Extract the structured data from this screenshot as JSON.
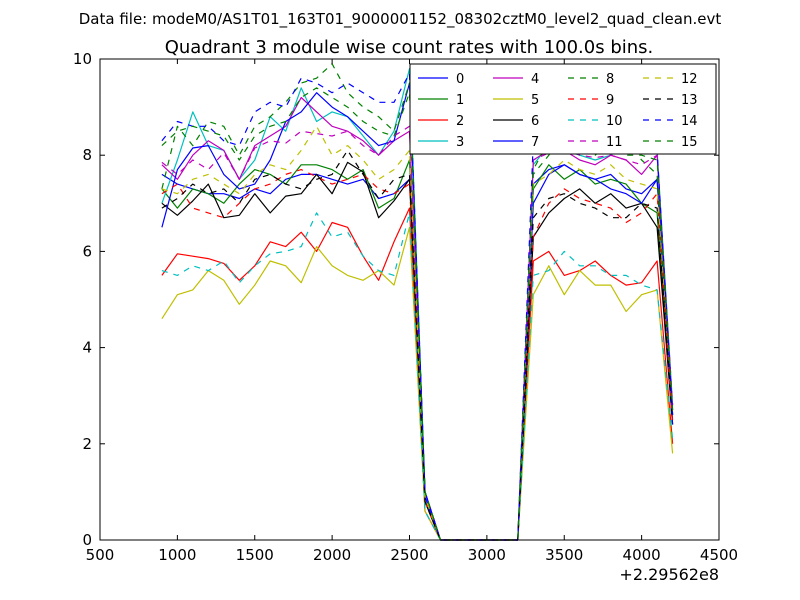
{
  "figure": {
    "suptitle": "Data file: modeM0/AS1T01_163T01_9000001152_08302cztM0_level2_quad_clean.evt",
    "offset_label": "+2.29562e8"
  },
  "chart_data": {
    "type": "line",
    "title": "Quadrant 3 module wise count rates with 100.0s bins.",
    "xlabel": "",
    "ylabel": "",
    "xlim": [
      500,
      4500
    ],
    "ylim": [
      0,
      10
    ],
    "xticks": [
      500,
      1000,
      1500,
      2000,
      2500,
      3000,
      3500,
      4000,
      4500
    ],
    "yticks": [
      0,
      2,
      4,
      6,
      8,
      10
    ],
    "x_offset": "+2.29562e8",
    "grid": false,
    "legend_position": "top-right",
    "legend_columns": 4,
    "x": [
      900,
      1000,
      1100,
      1200,
      1300,
      1400,
      1500,
      1600,
      1700,
      1800,
      1900,
      2000,
      2100,
      2200,
      2300,
      2400,
      2500,
      2600,
      2700,
      2800,
      2900,
      3000,
      3100,
      3200,
      3300,
      3400,
      3500,
      3600,
      3700,
      3800,
      3900,
      4000,
      4100,
      4200
    ],
    "series": [
      {
        "name": "0",
        "color": "#0000ff",
        "dash": "solid",
        "values": [
          7.6,
          7.4,
          7.3,
          7.2,
          7.2,
          7.1,
          7.3,
          7.2,
          7.5,
          7.6,
          7.6,
          7.5,
          7.4,
          7.5,
          7.1,
          7.2,
          7.5,
          0.9,
          0,
          0,
          0,
          0,
          0,
          0,
          7.4,
          7.7,
          7.8,
          7.6,
          7.5,
          7.6,
          7.3,
          7.2,
          7.5,
          2.6
        ]
      },
      {
        "name": "1",
        "color": "#008000",
        "dash": "solid",
        "values": [
          7.3,
          6.9,
          7.3,
          7.2,
          7.0,
          7.4,
          7.7,
          7.6,
          7.4,
          7.8,
          7.8,
          7.7,
          7.5,
          7.7,
          6.9,
          7.1,
          7.9,
          0.8,
          0,
          0,
          0,
          0,
          0,
          0,
          7.3,
          7.8,
          7.5,
          7.7,
          7.4,
          7.5,
          7.4,
          7.0,
          6.8,
          2.5
        ]
      },
      {
        "name": "2",
        "color": "#ff0000",
        "dash": "solid",
        "values": [
          5.5,
          5.95,
          5.9,
          5.85,
          5.75,
          5.4,
          5.7,
          6.2,
          6.1,
          6.4,
          6.0,
          6.6,
          6.5,
          5.9,
          5.4,
          6.2,
          6.9,
          0.6,
          0,
          0,
          0,
          0,
          0,
          0,
          5.8,
          6.0,
          5.5,
          5.6,
          5.8,
          5.5,
          5.3,
          5.35,
          5.8,
          2.0
        ]
      },
      {
        "name": "3",
        "color": "#00bfbf",
        "dash": "solid",
        "values": [
          7.0,
          7.9,
          8.9,
          8.2,
          8.1,
          7.5,
          7.9,
          8.8,
          8.5,
          9.4,
          8.7,
          8.9,
          8.8,
          8.4,
          8.0,
          8.5,
          9.8,
          1.0,
          0,
          0,
          0,
          0,
          0,
          0,
          7.8,
          8.2,
          8.1,
          8.0,
          7.9,
          8.0,
          8.2,
          8.2,
          8.1,
          2.8
        ]
      },
      {
        "name": "4",
        "color": "#bf00bf",
        "dash": "solid",
        "values": [
          7.8,
          7.5,
          8.0,
          8.3,
          8.1,
          7.5,
          8.2,
          8.4,
          8.6,
          9.2,
          8.9,
          8.6,
          8.5,
          8.3,
          8.0,
          8.3,
          8.5,
          1.0,
          0,
          0,
          0,
          0,
          0,
          0,
          7.9,
          8.1,
          8.1,
          7.9,
          7.8,
          8.0,
          7.9,
          7.6,
          8.0,
          2.7
        ]
      },
      {
        "name": "5",
        "color": "#bfbf00",
        "dash": "solid",
        "values": [
          4.6,
          5.1,
          5.2,
          5.6,
          5.4,
          4.9,
          5.3,
          5.8,
          5.7,
          5.35,
          6.1,
          5.7,
          5.5,
          5.4,
          5.6,
          5.3,
          6.5,
          0.6,
          0,
          0,
          0,
          0,
          0,
          0,
          5.1,
          5.7,
          5.1,
          5.6,
          5.3,
          5.3,
          4.75,
          5.1,
          5.2,
          1.8
        ]
      },
      {
        "name": "6",
        "color": "#000000",
        "dash": "solid",
        "values": [
          7.0,
          6.75,
          7.05,
          7.4,
          6.7,
          6.75,
          7.2,
          6.8,
          7.15,
          7.2,
          7.6,
          7.2,
          7.85,
          7.65,
          6.7,
          7.05,
          7.5,
          0.8,
          0,
          0,
          0,
          0,
          0,
          0,
          6.3,
          6.8,
          7.1,
          7.3,
          7.0,
          7.2,
          6.9,
          7.0,
          6.5,
          2.4
        ]
      },
      {
        "name": "7",
        "color": "#0000ff",
        "dash": "solid",
        "values": [
          6.5,
          7.7,
          8.15,
          8.2,
          7.6,
          7.3,
          7.4,
          7.9,
          8.7,
          8.9,
          9.3,
          9.0,
          8.8,
          8.5,
          8.2,
          8.3,
          9.5,
          1.0,
          0,
          0,
          0,
          0,
          0,
          0,
          7.0,
          7.6,
          7.8,
          7.6,
          7.5,
          7.3,
          7.2,
          7.0,
          7.5,
          2.4
        ]
      },
      {
        "name": "8",
        "color": "#008000",
        "dash": "dashed",
        "values": [
          7.3,
          8.6,
          8.2,
          8.7,
          8.6,
          8.0,
          8.6,
          8.8,
          9.1,
          9.5,
          9.6,
          9.9,
          9.3,
          9.0,
          8.8,
          8.5,
          9.5,
          1.0,
          0,
          0,
          0,
          0,
          0,
          0,
          7.6,
          8.0,
          8.5,
          8.2,
          8.0,
          8.3,
          8.3,
          7.9,
          7.6,
          2.6
        ]
      },
      {
        "name": "9",
        "color": "#ff0000",
        "dash": "dashed",
        "values": [
          7.2,
          7.4,
          6.9,
          6.8,
          6.7,
          7.0,
          7.3,
          7.4,
          7.6,
          7.7,
          7.55,
          7.4,
          7.5,
          7.6,
          7.3,
          7.2,
          7.4,
          0.8,
          0,
          0,
          0,
          0,
          0,
          0,
          6.3,
          7.0,
          7.3,
          7.1,
          7.0,
          6.9,
          6.6,
          6.8,
          7.2,
          2.4
        ]
      },
      {
        "name": "10",
        "color": "#00bfbf",
        "dash": "dashed",
        "values": [
          5.6,
          5.5,
          5.7,
          5.6,
          5.8,
          5.35,
          5.7,
          5.95,
          6.0,
          6.1,
          6.8,
          6.3,
          6.4,
          5.9,
          5.6,
          5.5,
          6.8,
          0.6,
          0,
          0,
          0,
          0,
          0,
          0,
          5.5,
          5.6,
          6.0,
          5.7,
          5.7,
          5.5,
          5.5,
          5.3,
          5.2,
          2.1
        ]
      },
      {
        "name": "11",
        "color": "#bf00bf",
        "dash": "dashed",
        "values": [
          7.85,
          7.6,
          7.9,
          7.7,
          8.05,
          7.5,
          8.15,
          8.3,
          8.25,
          8.5,
          8.45,
          8.4,
          8.5,
          8.2,
          8.0,
          8.4,
          8.6,
          1.0,
          0,
          0,
          0,
          0,
          0,
          0,
          7.9,
          8.05,
          8.15,
          8.0,
          7.95,
          8.0,
          7.9,
          7.8,
          8.0,
          2.8
        ]
      },
      {
        "name": "12",
        "color": "#bfbf00",
        "dash": "dashed",
        "values": [
          7.3,
          7.2,
          7.5,
          7.6,
          7.4,
          7.2,
          7.6,
          7.8,
          7.7,
          8.1,
          8.6,
          8.0,
          8.2,
          7.9,
          7.5,
          7.7,
          8.1,
          0.9,
          0,
          0,
          0,
          0,
          0,
          0,
          7.4,
          7.6,
          7.9,
          7.7,
          7.6,
          7.8,
          7.5,
          7.4,
          7.3,
          2.6
        ]
      },
      {
        "name": "13",
        "color": "#000000",
        "dash": "dashed",
        "values": [
          6.9,
          7.1,
          7.4,
          7.2,
          7.3,
          7.0,
          7.5,
          7.6,
          7.4,
          7.3,
          7.5,
          7.6,
          8.1,
          7.6,
          7.1,
          7.5,
          7.6,
          0.8,
          0,
          0,
          0,
          0,
          0,
          0,
          6.7,
          7.1,
          7.2,
          7.0,
          6.9,
          6.7,
          6.7,
          7.0,
          6.9,
          2.5
        ]
      },
      {
        "name": "14",
        "color": "#0000ff",
        "dash": "dashed",
        "values": [
          8.3,
          8.7,
          8.6,
          8.6,
          8.3,
          8.2,
          8.9,
          9.1,
          9.0,
          9.6,
          9.5,
          9.3,
          9.5,
          9.3,
          9.1,
          9.1,
          9.7,
          1.0,
          0,
          0,
          0,
          0,
          0,
          0,
          8.3,
          8.6,
          8.6,
          8.5,
          8.5,
          8.4,
          8.2,
          8.3,
          8.1,
          2.6
        ]
      },
      {
        "name": "15",
        "color": "#008000",
        "dash": "dashed",
        "values": [
          8.2,
          8.5,
          8.6,
          8.5,
          8.4,
          7.9,
          8.4,
          8.6,
          8.7,
          9.2,
          9.4,
          9.2,
          9.0,
          8.7,
          8.5,
          8.4,
          9.3,
          1.0,
          0,
          0,
          0,
          0,
          0,
          0,
          7.7,
          8.3,
          8.6,
          8.4,
          8.2,
          8.1,
          8.0,
          8.0,
          7.9,
          2.7
        ]
      }
    ]
  }
}
